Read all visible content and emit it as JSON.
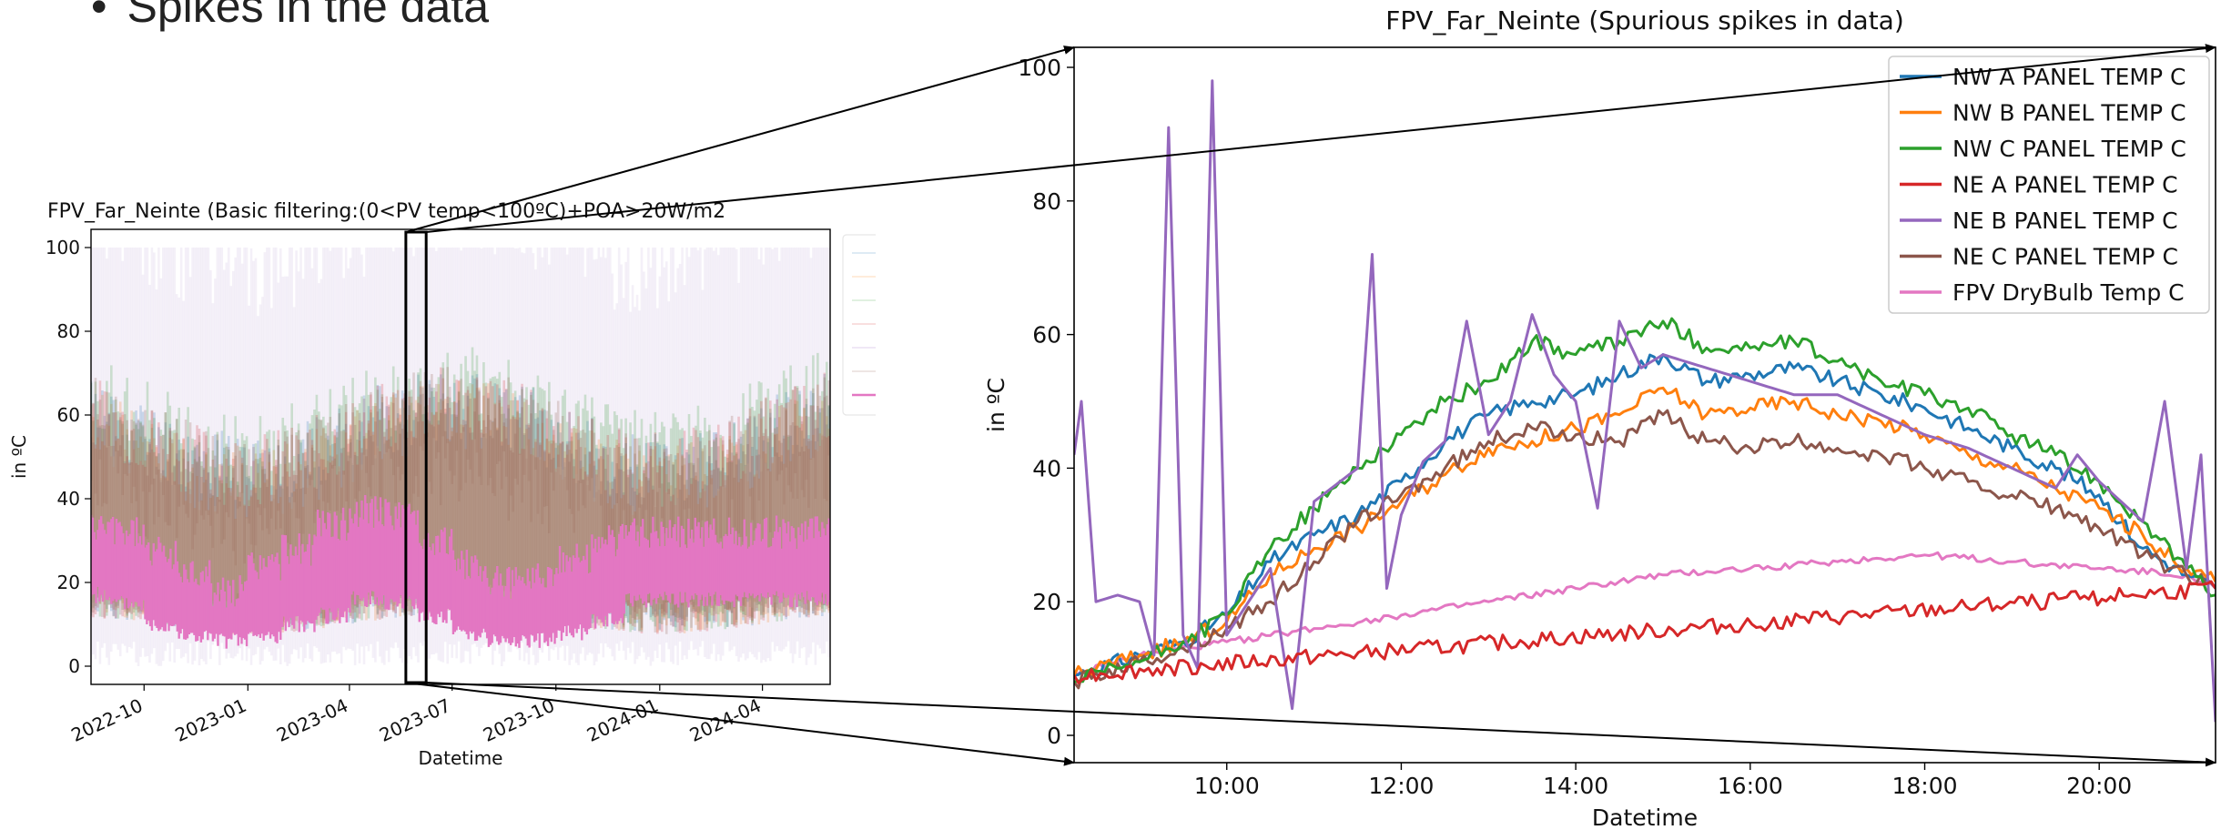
{
  "slide": {
    "bullet_text": "Spikes in the data"
  },
  "chart_data": [
    {
      "type": "line",
      "title": "FPV_Far_Neinte (Basic filtering:(0<PV temp<100ºC)+POA>20W/m2",
      "xlabel": "Datetime",
      "ylabel": "in ºC",
      "ylim": [
        0,
        100
      ],
      "yticks": [
        0,
        20,
        40,
        60,
        80,
        100
      ],
      "x_range": [
        "2022-08-15",
        "2024-05-31"
      ],
      "xticks": [
        "2022-10",
        "2023-01",
        "2023-04",
        "2023-07",
        "2023-10",
        "2024-01",
        "2024-04"
      ],
      "grid": false,
      "legend": "right, outside (entries faded)",
      "zoom_window": [
        "2023-05-21",
        "2023-06-08"
      ],
      "series": [
        {
          "name": "NW A PANEL TEMP C",
          "color": "#1f77b4",
          "band": [
            10,
            55
          ]
        },
        {
          "name": "NW B PANEL TEMP C",
          "color": "#ff7f0e",
          "band": [
            10,
            52
          ]
        },
        {
          "name": "NW C PANEL TEMP C",
          "color": "#2ca02c",
          "band": [
            10,
            60
          ]
        },
        {
          "name": "NE A PANEL TEMP C",
          "color": "#d62728",
          "band": [
            10,
            55
          ]
        },
        {
          "name": "NE B PANEL TEMP C",
          "color": "#9467bd",
          "band": [
            0,
            100
          ]
        },
        {
          "name": "NE C PANEL TEMP C",
          "color": "#8c564b",
          "band": [
            10,
            55
          ]
        },
        {
          "name": "FPV DryBulb Temp C",
          "color": "#e377c2",
          "monthly_min": [
            15,
            13,
            8,
            5,
            4,
            5,
            8,
            10,
            14,
            13,
            10,
            6,
            4,
            4,
            6,
            9,
            14
          ],
          "monthly_max": [
            33,
            32,
            27,
            22,
            18,
            24,
            28,
            34,
            37,
            36,
            30,
            24,
            20,
            22,
            26,
            30,
            32
          ]
        }
      ]
    },
    {
      "type": "line",
      "title": "FPV_Far_Neinte (Spurious spikes in data)",
      "xlabel": "Datetime",
      "ylabel": "in ºC",
      "ylim": [
        0,
        100
      ],
      "yticks": [
        0,
        20,
        40,
        60,
        80,
        100
      ],
      "x_range": [
        "08:15",
        "21:20"
      ],
      "xticks": [
        "10:00",
        "12:00",
        "14:00",
        "16:00",
        "18:00",
        "20:00"
      ],
      "grid": false,
      "legend": "upper right",
      "series": [
        {
          "name": "NW A PANEL TEMP C",
          "color": "#1f77b4",
          "x": [
            "08:15",
            "09:00",
            "09:30",
            "10:00",
            "10:30",
            "11:00",
            "11:30",
            "12:00",
            "12:30",
            "13:00",
            "13:30",
            "14:00",
            "14:30",
            "15:00",
            "15:30",
            "16:00",
            "16:30",
            "17:00",
            "17:30",
            "18:00",
            "18:30",
            "19:00",
            "19:30",
            "20:00",
            "20:30",
            "21:00",
            "21:20"
          ],
          "values": [
            9,
            12,
            14,
            18,
            26,
            30,
            33,
            38,
            44,
            48,
            50,
            51,
            54,
            57,
            53,
            54,
            55,
            53,
            51,
            49,
            46,
            43,
            40,
            36,
            28,
            24,
            22
          ]
        },
        {
          "name": "NW B PANEL TEMP C",
          "color": "#ff7f0e",
          "x": [
            "08:15",
            "09:00",
            "09:30",
            "10:00",
            "10:30",
            "11:00",
            "11:30",
            "12:00",
            "12:30",
            "13:00",
            "13:30",
            "14:00",
            "14:30",
            "15:00",
            "15:30",
            "16:00",
            "16:30",
            "17:00",
            "17:30",
            "18:00",
            "18:30",
            "19:00",
            "19:30",
            "20:00",
            "20:30",
            "21:00",
            "21:20"
          ],
          "values": [
            9,
            12,
            14,
            17,
            24,
            28,
            31,
            35,
            39,
            43,
            44,
            46,
            48,
            52,
            48,
            49,
            50,
            48,
            47,
            45,
            42,
            40,
            37,
            34,
            30,
            25,
            23
          ]
        },
        {
          "name": "NW C PANEL TEMP C",
          "color": "#2ca02c",
          "x": [
            "08:15",
            "09:00",
            "09:30",
            "10:00",
            "10:30",
            "11:00",
            "11:30",
            "12:00",
            "12:30",
            "13:00",
            "13:30",
            "14:00",
            "14:30",
            "15:00",
            "15:30",
            "16:00",
            "16:30",
            "17:00",
            "17:30",
            "18:00",
            "18:30",
            "19:00",
            "19:30",
            "20:00",
            "20:30",
            "21:00",
            "21:20"
          ],
          "values": [
            8,
            11,
            14,
            18,
            28,
            34,
            40,
            45,
            50,
            53,
            59,
            57,
            59,
            62,
            58,
            58,
            59,
            56,
            53,
            51,
            49,
            45,
            42,
            38,
            32,
            25,
            21
          ]
        },
        {
          "name": "NE A PANEL TEMP C",
          "color": "#d62728",
          "x": [
            "08:15",
            "21:20"
          ],
          "values": [
            9,
            22
          ]
        },
        {
          "name": "NE B PANEL TEMP C",
          "color": "#9467bd",
          "x": [
            "08:15",
            "08:20",
            "08:30",
            "08:45",
            "09:00",
            "09:10",
            "09:20",
            "09:30",
            "09:40",
            "09:50",
            "10:00",
            "10:30",
            "10:45",
            "11:00",
            "11:30",
            "11:40",
            "11:50",
            "12:00",
            "12:15",
            "12:30",
            "12:45",
            "13:00",
            "13:15",
            "13:30",
            "13:45",
            "14:00",
            "14:15",
            "14:30",
            "14:45",
            "15:00",
            "15:30",
            "16:00",
            "16:30",
            "17:00",
            "17:30",
            "18:00",
            "18:30",
            "19:00",
            "19:30",
            "19:45",
            "20:00",
            "20:30",
            "20:45",
            "21:00",
            "21:10",
            "21:20"
          ],
          "values": [
            42,
            50,
            20,
            21,
            20,
            12,
            91,
            15,
            10,
            98,
            15,
            25,
            4,
            35,
            40,
            72,
            22,
            33,
            41,
            44,
            62,
            45,
            50,
            63,
            54,
            50,
            34,
            62,
            55,
            57,
            55,
            53,
            51,
            51,
            48,
            45,
            43,
            40,
            37,
            42,
            38,
            32,
            50,
            25,
            42,
            2
          ]
        },
        {
          "name": "NE C PANEL TEMP C",
          "color": "#8c564b",
          "x": [
            "08:15",
            "09:00",
            "09:30",
            "10:00",
            "10:30",
            "11:00",
            "11:30",
            "12:00",
            "12:30",
            "13:00",
            "13:30",
            "14:00",
            "14:30",
            "15:00",
            "15:30",
            "16:00",
            "16:30",
            "17:00",
            "17:30",
            "18:00",
            "18:30",
            "19:00",
            "19:30",
            "20:00",
            "20:30",
            "21:00",
            "21:20"
          ],
          "values": [
            8,
            11,
            13,
            16,
            20,
            26,
            32,
            36,
            40,
            44,
            46,
            45,
            44,
            48,
            44,
            43,
            44,
            43,
            42,
            40,
            38,
            36,
            34,
            31,
            27,
            24,
            22
          ]
        },
        {
          "name": "FPV DryBulb Temp C",
          "color": "#e377c2",
          "x": [
            "08:15",
            "09:00",
            "10:00",
            "11:00",
            "12:00",
            "13:00",
            "14:00",
            "15:00",
            "16:00",
            "17:00",
            "18:00",
            "19:00",
            "20:00",
            "21:00",
            "21:20"
          ],
          "values": [
            9,
            12,
            14,
            16,
            18,
            20,
            22,
            24,
            25,
            26,
            27,
            26,
            25,
            24,
            22
          ]
        }
      ]
    }
  ]
}
